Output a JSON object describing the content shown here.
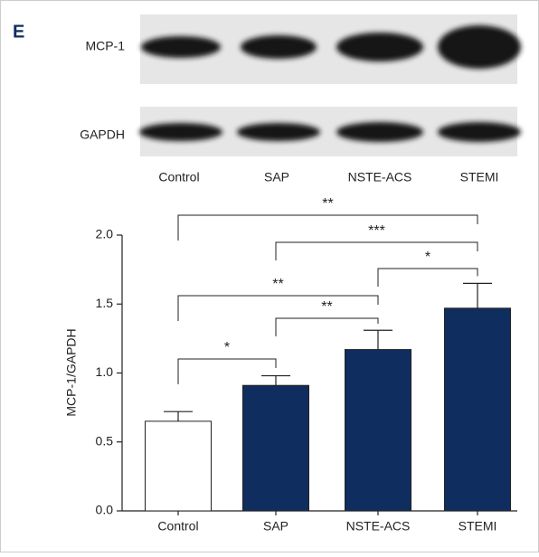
{
  "panel_label": "E",
  "blot": {
    "rows": [
      "MCP-1",
      "GAPDH"
    ],
    "lanes": [
      "Control",
      "SAP",
      "NSTE-ACS",
      "STEMI"
    ]
  },
  "chart_data": {
    "type": "bar",
    "ylabel": "MCP-1/GAPDH",
    "categories": [
      "Control",
      "SAP",
      "NSTE-ACS",
      "STEMI"
    ],
    "values": [
      0.65,
      0.91,
      1.17,
      1.47
    ],
    "errors": [
      0.07,
      0.07,
      0.14,
      0.18
    ],
    "colors": [
      "#ffffff",
      "#0f2d5e",
      "#0f2d5e",
      "#0f2d5e"
    ],
    "ylim": [
      0,
      2
    ],
    "yticks": [
      {
        "value": 0,
        "label": "0.0"
      },
      0.5,
      {
        "value": 1,
        "label": "1.0"
      },
      1.5,
      {
        "value": 2,
        "label": "2.0"
      }
    ],
    "annotations": [
      {
        "label": "*",
        "between": [
          "Control",
          "SAP"
        ]
      },
      {
        "label": "**",
        "between": [
          "SAP",
          "NSTE-ACS"
        ]
      },
      {
        "label": "**",
        "between": [
          "Control",
          "NSTE-ACS"
        ]
      },
      {
        "label": "*",
        "between": [
          "NSTE-ACS",
          "STEMI"
        ]
      },
      {
        "label": "***",
        "between": [
          "SAP",
          "STEMI"
        ]
      },
      {
        "label": "**",
        "between": [
          "Control",
          "STEMI"
        ]
      }
    ]
  }
}
